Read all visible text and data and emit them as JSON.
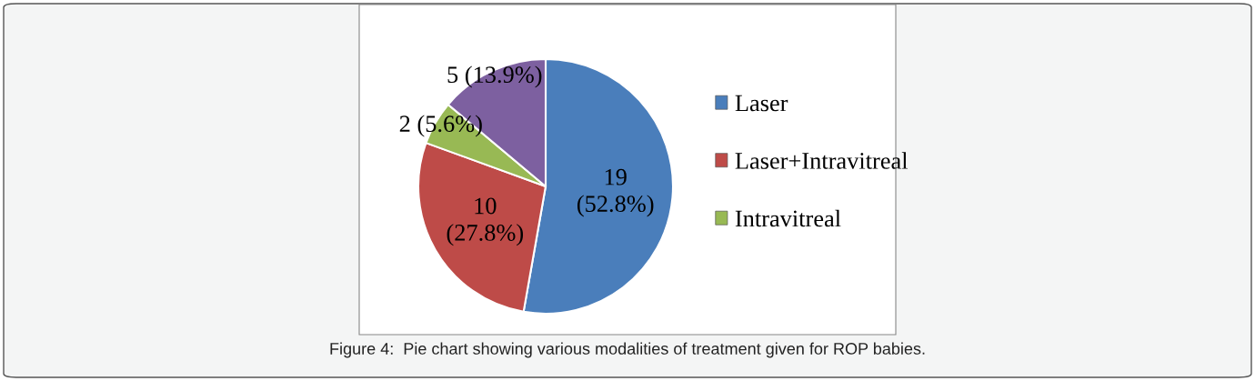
{
  "chart_data": {
    "type": "pie",
    "categories": [
      "Laser",
      "Laser+Intravitreal",
      "Intravitreal",
      null
    ],
    "values": [
      19,
      10,
      2,
      5
    ],
    "colors": [
      "#4a7ebb",
      "#be4b48",
      "#98b954",
      "#7d60a0"
    ],
    "value_labels": [
      "19\n(52.8%)",
      "10\n(27.8%)",
      "2 (5.6%)",
      "5 (13.9%)"
    ],
    "legend": "right",
    "annotations": [
      "Figure 4:  Pie chart showing various modalities of treatment given for ROP babies."
    ]
  }
}
